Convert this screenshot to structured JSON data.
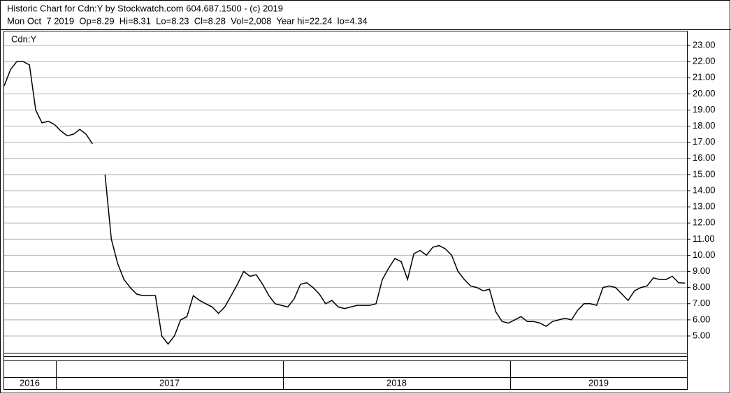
{
  "chart_data": {
    "type": "line",
    "title": "Historic Chart for Cdn:Y by Stockwatch.com 604.687.1500 - (c) 2019",
    "subtitle": "Mon Oct  7 2019  Op=8.29  Hi=8.31  Lo=8.23  Cl=8.28  Vol=2,008  Year hi=22.24  lo=4.34",
    "series_label": "Cdn:Y",
    "color": "#000000",
    "years": [
      "2016",
      "2017",
      "2018",
      "2019"
    ],
    "values": [
      20.5,
      21.5,
      22.0,
      22.0,
      21.8,
      19.0,
      18.2,
      18.3,
      18.1,
      17.7,
      17.4,
      17.5,
      17.8,
      17.5,
      16.9,
      null,
      15.0,
      11.0,
      9.5,
      8.5,
      8.0,
      7.6,
      7.5,
      7.5,
      7.5,
      5.0,
      4.5,
      5.0,
      6.0,
      6.2,
      7.5,
      7.2,
      7.0,
      6.8,
      6.4,
      6.8,
      7.5,
      8.2,
      9.0,
      8.7,
      8.8,
      8.2,
      7.5,
      7.0,
      6.9,
      6.8,
      7.3,
      8.2,
      8.3,
      8.0,
      7.6,
      7.0,
      7.2,
      6.8,
      6.7,
      6.8,
      6.9,
      6.9,
      6.9,
      7.0,
      8.5,
      9.2,
      9.8,
      9.6,
      8.5,
      10.1,
      10.3,
      10.0,
      10.5,
      10.6,
      10.4,
      10.0,
      9.0,
      8.5,
      8.1,
      8.0,
      7.8,
      7.9,
      6.5,
      5.9,
      5.8,
      6.0,
      6.2,
      5.9,
      5.9,
      5.8,
      5.6,
      5.9,
      6.0,
      6.1,
      6.0,
      6.6,
      7.0,
      7.0,
      6.9,
      8.0,
      8.1,
      8.0,
      7.6,
      7.2,
      7.8,
      8.0,
      8.1,
      8.6,
      8.5,
      8.5,
      8.7,
      8.3,
      8.28
    ],
    "ylim": [
      3.96,
      23.91
    ],
    "yticks": [
      {
        "value": 5,
        "label": "5.00"
      },
      {
        "value": 6,
        "label": "6.00"
      },
      {
        "value": 7,
        "label": "7.00"
      },
      {
        "value": 8,
        "label": "8.00"
      },
      {
        "value": 9,
        "label": "9.00"
      },
      {
        "value": 10,
        "label": "10.00"
      },
      {
        "value": 11,
        "label": "11.00"
      },
      {
        "value": 12,
        "label": "12.00"
      },
      {
        "value": 13,
        "label": "13.00"
      },
      {
        "value": 14,
        "label": "14.00"
      },
      {
        "value": 15,
        "label": "15.00"
      },
      {
        "value": 16,
        "label": "16.00"
      },
      {
        "value": 17,
        "label": "17.00"
      },
      {
        "value": 18,
        "label": "18.00"
      },
      {
        "value": 19,
        "label": "19.00"
      },
      {
        "value": 20,
        "label": "20.00"
      },
      {
        "value": 21,
        "label": "21.00"
      },
      {
        "value": 22,
        "label": "22.00"
      },
      {
        "value": 23,
        "label": "23.00"
      }
    ],
    "grid": true
  }
}
